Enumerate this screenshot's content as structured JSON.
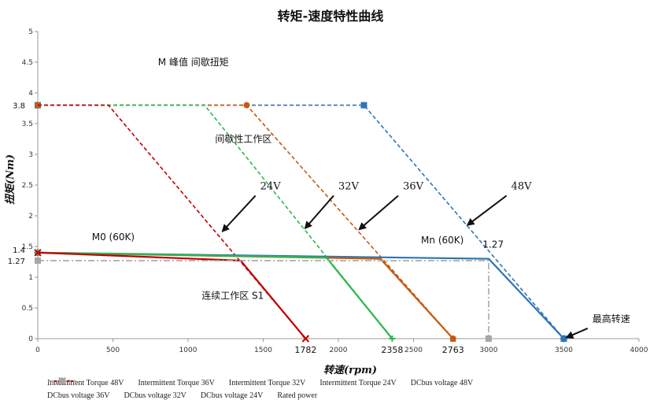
{
  "chart_data": {
    "type": "line",
    "title": "转矩-速度特性曲线",
    "xlabel": "转速(rpm)",
    "ylabel": "扭矩(Nm)",
    "xlim": [
      0,
      4000
    ],
    "ylim": [
      0,
      5
    ],
    "xticks": [
      0,
      500,
      1000,
      1500,
      2000,
      2500,
      3000,
      3500,
      4000
    ],
    "xtick_labels": [
      "0",
      "500",
      "1000",
      "1500",
      "2000",
      "2500",
      "3000",
      "3500",
      "4000"
    ],
    "extra_xticks": [
      {
        "value": 1782,
        "label": "1782"
      },
      {
        "value": 2358,
        "label": "2358"
      },
      {
        "value": 2763,
        "label": "2763"
      }
    ],
    "yticks": [
      0,
      0.5,
      1,
      1.5,
      2,
      2.5,
      3,
      3.5,
      4,
      4.5,
      5
    ],
    "ytick_labels": [
      "0",
      "0.5",
      "1",
      "1.5",
      "2",
      "2.5",
      "3",
      "3.5",
      "4",
      "4.5",
      "5"
    ],
    "extra_yticks": [
      {
        "value": 3.8,
        "label": "3.8"
      },
      {
        "value": 1.4,
        "label": "1.4"
      },
      {
        "value": 1.27,
        "label": "1.27"
      }
    ],
    "grid": false,
    "legend_position": "bottom",
    "series": [
      {
        "name": "Intermittent Torque 48V",
        "color": "#2e75b6",
        "style": "dashed",
        "marker": "square",
        "x": [
          0,
          2170,
          3500
        ],
        "y": [
          3.8,
          3.8,
          0
        ]
      },
      {
        "name": "Intermittent Torque 36V",
        "color": "#c55a11",
        "style": "dashed",
        "marker": "circle",
        "x": [
          0,
          1390,
          2763
        ],
        "y": [
          3.8,
          3.8,
          0
        ]
      },
      {
        "name": "Intermittent Torque 32V",
        "color": "#2db84c",
        "style": "dashed",
        "marker": "none",
        "x": [
          0,
          1110,
          2358
        ],
        "y": [
          3.8,
          3.8,
          0
        ]
      },
      {
        "name": "Intermittent Torque 24V",
        "color": "#c00000",
        "style": "dashed",
        "marker": "none",
        "x": [
          0,
          470,
          1782
        ],
        "y": [
          3.8,
          3.8,
          0
        ]
      },
      {
        "name": "DCbus voltage 48V",
        "color": "#2e75b6",
        "style": "solid",
        "marker": "diamond",
        "x": [
          0,
          3000,
          3500
        ],
        "y": [
          1.4,
          1.3,
          0
        ]
      },
      {
        "name": "DCbus voltage 36V",
        "color": "#c55a11",
        "style": "solid",
        "marker": "triangle",
        "x": [
          0,
          2280,
          2763
        ],
        "y": [
          1.4,
          1.3,
          0
        ]
      },
      {
        "name": "DCbus voltage 32V",
        "color": "#2db84c",
        "style": "solid",
        "marker": "plus",
        "x": [
          0,
          1920,
          2358
        ],
        "y": [
          1.4,
          1.32,
          0
        ]
      },
      {
        "name": "DCbus voltage 24V",
        "color": "#c00000",
        "style": "solid",
        "marker": "cross",
        "x": [
          0,
          1350,
          1782
        ],
        "y": [
          1.4,
          1.27,
          0
        ]
      },
      {
        "name": "Rated power",
        "color": "#a6a6a6",
        "style": "dashdot",
        "marker": "square",
        "x": [
          0,
          3000,
          3000
        ],
        "y": [
          1.27,
          1.27,
          0
        ]
      }
    ],
    "annotations": [
      {
        "text": "M 峰值   间歇扭矩",
        "x": 800,
        "y": 4.45
      },
      {
        "text": "间歇性工作区",
        "x": 1180,
        "y": 3.2
      },
      {
        "text": "24V",
        "x": 1480,
        "y": 2.43,
        "arrow_to": [
          1230,
          1.75
        ]
      },
      {
        "text": "32V",
        "x": 2000,
        "y": 2.43,
        "arrow_to": [
          1780,
          1.8
        ]
      },
      {
        "text": "36V",
        "x": 2430,
        "y": 2.43,
        "arrow_to": [
          2140,
          1.78
        ]
      },
      {
        "text": "48V",
        "x": 3150,
        "y": 2.43,
        "arrow_to": [
          2860,
          1.85
        ]
      },
      {
        "text": "M0 (60K)",
        "x": 360,
        "y": 1.6
      },
      {
        "text": "Mn (60K)",
        "x": 2550,
        "y": 1.55
      },
      {
        "text": "1.27",
        "x": 2960,
        "y": 1.48
      },
      {
        "text": "连续工作区 S1",
        "x": 1090,
        "y": 0.65
      },
      {
        "text": "最高转速",
        "x": 3690,
        "y": 0.27,
        "arrow_to": [
          3520,
          0.02
        ]
      }
    ]
  }
}
